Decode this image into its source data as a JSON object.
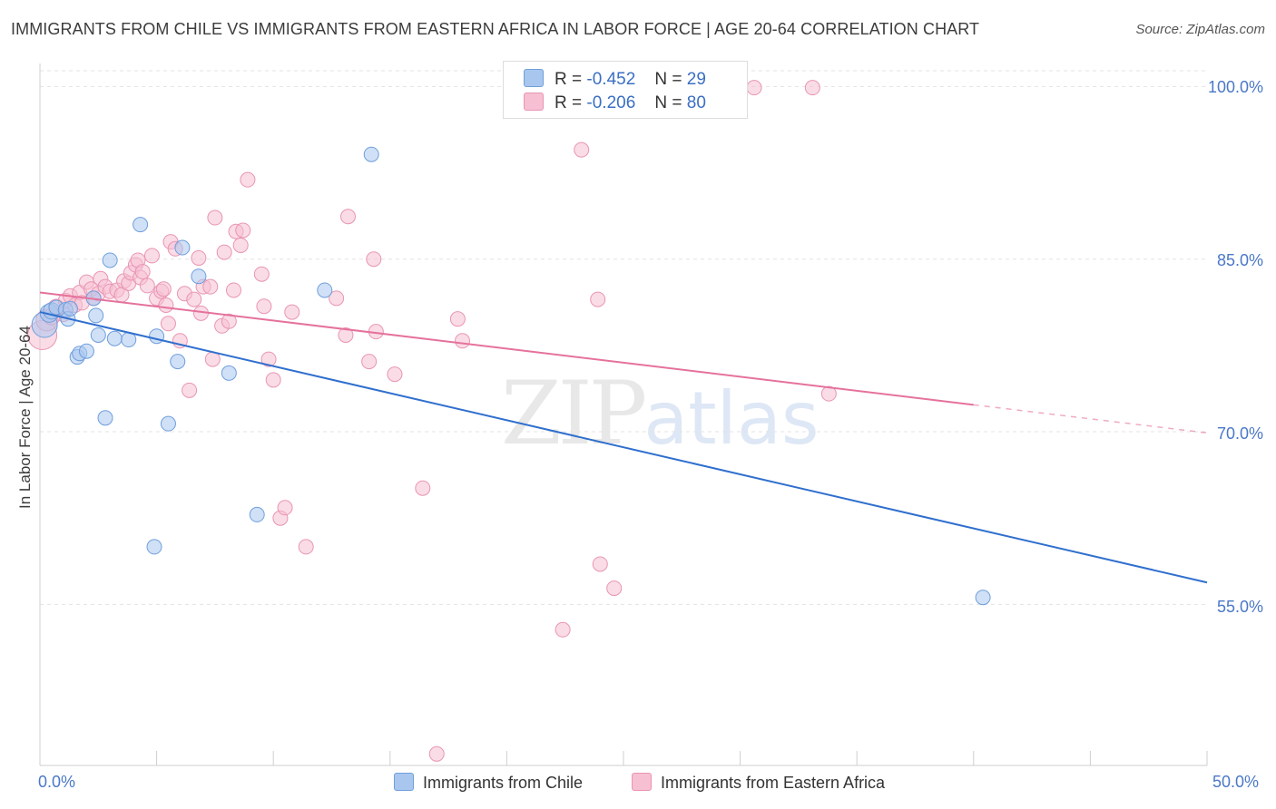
{
  "header": {
    "title": "IMMIGRANTS FROM CHILE VS IMMIGRANTS FROM EASTERN AFRICA IN LABOR FORCE | AGE 20-64 CORRELATION CHART",
    "source": "Source: ZipAtlas.com"
  },
  "legend": {
    "r_label": "R =",
    "n_label": "N =",
    "chile_r": "-0.452",
    "chile_n": "29",
    "eafrica_r": "-0.206",
    "eafrica_n": "80"
  },
  "watermark": {
    "zip": "ZIP",
    "atlas": "atlas"
  },
  "colors": {
    "chile_fill": "#a9c6ee",
    "chile_stroke": "#6f9fdc",
    "chile_line": "#2f6fce",
    "eafrica_fill": "#f6bfd2",
    "eafrica_stroke": "#e995b3",
    "eafrica_line": "#e5729c",
    "tick_text": "#4a78c8",
    "grid": "#e3e3e3"
  },
  "chart_data": {
    "type": "scatter",
    "title": "IMMIGRANTS FROM CHILE VS IMMIGRANTS FROM EASTERN AFRICA IN LABOR FORCE | AGE 20-64 CORRELATION CHART",
    "xlabel": "",
    "ylabel": "In Labor Force | Age 20-64",
    "xlim": [
      0,
      50
    ],
    "ylim": [
      41,
      102
    ],
    "x_tick_labels": [
      "0.0%",
      "50.0%"
    ],
    "y_ticks": [
      55,
      70,
      85,
      100
    ],
    "y_tick_labels": [
      "55.0%",
      "70.0%",
      "85.0%",
      "100.0%"
    ],
    "grid": true,
    "legend_position": "top-center",
    "series": [
      {
        "name": "Immigrants from Chile",
        "r": -0.452,
        "n": 29,
        "trend": {
          "x": [
            0,
            50
          ],
          "y": [
            80.4,
            56.9
          ],
          "dashed_from": null
        },
        "points": [
          [
            0.2,
            79.3,
            14
          ],
          [
            0.4,
            80.3,
            10
          ],
          [
            0.5,
            80.5,
            9
          ],
          [
            0.7,
            80.8,
            8
          ],
          [
            1.1,
            80.6,
            8
          ],
          [
            1.2,
            79.8,
            8
          ],
          [
            1.3,
            80.7,
            8
          ],
          [
            1.6,
            76.5,
            8
          ],
          [
            1.7,
            76.8,
            8
          ],
          [
            2.0,
            77.0,
            8
          ],
          [
            2.3,
            81.6,
            8
          ],
          [
            2.4,
            80.1,
            8
          ],
          [
            2.5,
            78.4,
            8
          ],
          [
            2.8,
            71.2,
            8
          ],
          [
            3.0,
            84.9,
            8
          ],
          [
            3.2,
            78.1,
            8
          ],
          [
            3.8,
            78.0,
            8
          ],
          [
            4.3,
            88.0,
            8
          ],
          [
            4.9,
            60.0,
            8
          ],
          [
            5.0,
            78.3,
            8
          ],
          [
            5.5,
            70.7,
            8
          ],
          [
            5.9,
            76.1,
            8
          ],
          [
            6.1,
            86.0,
            8
          ],
          [
            6.8,
            83.5,
            8
          ],
          [
            8.1,
            75.1,
            8
          ],
          [
            9.3,
            62.8,
            8
          ],
          [
            12.2,
            82.3,
            8
          ],
          [
            14.2,
            94.1,
            8
          ],
          [
            40.4,
            55.6,
            8
          ]
        ]
      },
      {
        "name": "Immigrants from Eastern Africa",
        "r": -0.206,
        "n": 80,
        "trend": {
          "x": [
            0,
            50
          ],
          "y": [
            82.1,
            69.9
          ],
          "dashed_from": 40.0
        },
        "points": [
          [
            0.1,
            78.4,
            16
          ],
          [
            0.3,
            79.7,
            12
          ],
          [
            0.7,
            80.8,
            9
          ],
          [
            1.0,
            80.2,
            8
          ],
          [
            1.1,
            81.4,
            8
          ],
          [
            1.3,
            81.8,
            8
          ],
          [
            1.5,
            81.0,
            8
          ],
          [
            1.7,
            82.1,
            8
          ],
          [
            1.8,
            81.2,
            8
          ],
          [
            2.0,
            83.0,
            8
          ],
          [
            2.2,
            82.4,
            8
          ],
          [
            2.3,
            81.6,
            8
          ],
          [
            2.5,
            82.0,
            8
          ],
          [
            2.6,
            83.3,
            8
          ],
          [
            2.8,
            82.6,
            8
          ],
          [
            3.0,
            82.2,
            8
          ],
          [
            3.3,
            82.3,
            8
          ],
          [
            3.5,
            81.9,
            8
          ],
          [
            3.6,
            83.1,
            8
          ],
          [
            3.8,
            82.9,
            8
          ],
          [
            3.9,
            83.8,
            8
          ],
          [
            4.1,
            84.5,
            8
          ],
          [
            4.2,
            84.9,
            8
          ],
          [
            4.3,
            83.4,
            8
          ],
          [
            4.4,
            83.9,
            8
          ],
          [
            4.6,
            82.7,
            8
          ],
          [
            4.8,
            85.3,
            8
          ],
          [
            5.0,
            81.6,
            8
          ],
          [
            5.2,
            82.2,
            8
          ],
          [
            5.3,
            82.4,
            8
          ],
          [
            5.4,
            81.0,
            8
          ],
          [
            5.5,
            79.4,
            8
          ],
          [
            5.6,
            86.5,
            8
          ],
          [
            5.8,
            85.9,
            8
          ],
          [
            6.0,
            77.9,
            8
          ],
          [
            6.2,
            82.0,
            8
          ],
          [
            6.4,
            73.6,
            8
          ],
          [
            6.6,
            81.5,
            8
          ],
          [
            6.8,
            85.1,
            8
          ],
          [
            6.9,
            80.3,
            8
          ],
          [
            7.0,
            82.6,
            8
          ],
          [
            7.3,
            82.6,
            8
          ],
          [
            7.4,
            76.3,
            8
          ],
          [
            7.5,
            88.6,
            8
          ],
          [
            7.8,
            79.2,
            8
          ],
          [
            7.9,
            85.6,
            8
          ],
          [
            8.1,
            79.6,
            8
          ],
          [
            8.3,
            82.3,
            8
          ],
          [
            8.4,
            87.4,
            8
          ],
          [
            8.6,
            86.2,
            8
          ],
          [
            8.7,
            87.5,
            8
          ],
          [
            8.9,
            91.9,
            8
          ],
          [
            9.5,
            83.7,
            8
          ],
          [
            9.6,
            80.9,
            8
          ],
          [
            9.8,
            76.3,
            8
          ],
          [
            10.0,
            74.5,
            8
          ],
          [
            10.3,
            62.5,
            8
          ],
          [
            10.5,
            63.4,
            8
          ],
          [
            10.8,
            80.4,
            8
          ],
          [
            11.4,
            60.0,
            8
          ],
          [
            12.7,
            81.6,
            8
          ],
          [
            13.1,
            78.4,
            8
          ],
          [
            13.2,
            88.7,
            8
          ],
          [
            14.1,
            76.1,
            8
          ],
          [
            14.3,
            85.0,
            8
          ],
          [
            14.4,
            78.7,
            8
          ],
          [
            15.2,
            75.0,
            8
          ],
          [
            16.4,
            65.1,
            8
          ],
          [
            17.0,
            42.0,
            8
          ],
          [
            17.9,
            79.8,
            8
          ],
          [
            18.1,
            77.9,
            8
          ],
          [
            22.4,
            52.8,
            8
          ],
          [
            23.2,
            94.5,
            8
          ],
          [
            23.9,
            81.5,
            8
          ],
          [
            24.0,
            58.5,
            8
          ],
          [
            24.6,
            56.4,
            8
          ],
          [
            30.6,
            99.9,
            8
          ],
          [
            33.1,
            99.9,
            8
          ],
          [
            33.8,
            73.3,
            8
          ],
          [
            0.5,
            80.0,
            9
          ]
        ]
      }
    ]
  },
  "bottom_legend": {
    "chile": "Immigrants from Chile",
    "eafrica": "Immigrants from Eastern Africa"
  }
}
